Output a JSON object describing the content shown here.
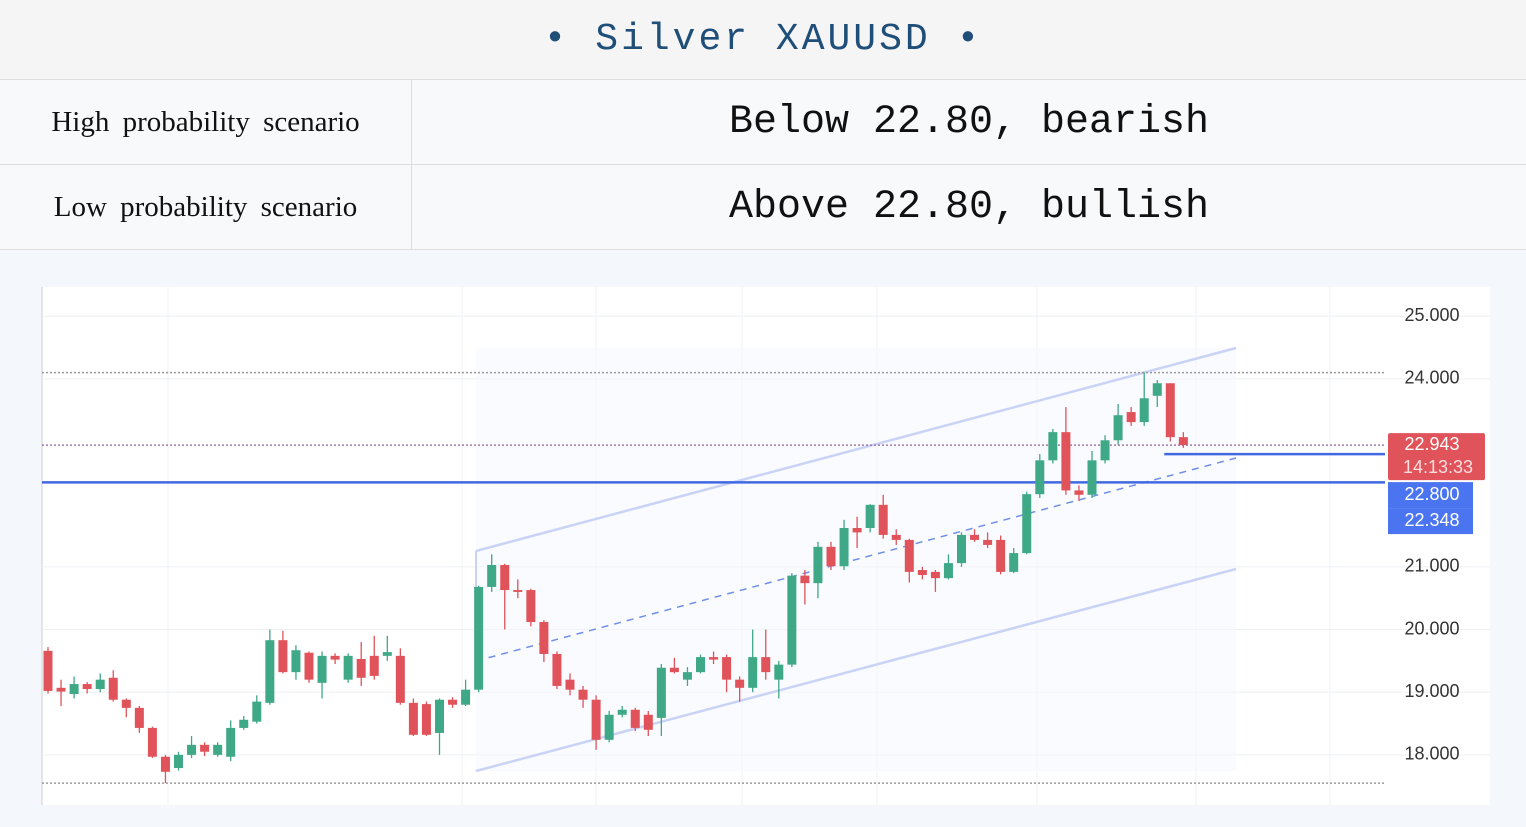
{
  "header": {
    "title": "• Silver XAUUSD •"
  },
  "table": {
    "rows": [
      [
        "High probability scenario",
        "Below 22.80, bearish"
      ],
      [
        "Low probability scenario",
        "Above 22.80, bullish"
      ]
    ]
  },
  "chart_data": {
    "type": "candlestick",
    "up_color": "#3fa886",
    "down_color": "#e0535a",
    "open": [
      19.66,
      19.07,
      18.97,
      19.13,
      19.05,
      19.23,
      18.88,
      18.75,
      18.43,
      17.97,
      17.79,
      18.0,
      18.16,
      18.0,
      17.97,
      18.43,
      18.53,
      18.83,
      19.83,
      19.32,
      19.63,
      19.15,
      19.58,
      19.2,
      19.53,
      19.58,
      19.58,
      19.58,
      18.83,
      18.81,
      18.35,
      18.88,
      18.8,
      19.04,
      20.68,
      21.03,
      20.63,
      20.63,
      20.12,
      19.61,
      19.2,
      19.04,
      18.88,
      18.24,
      18.64,
      18.72,
      18.64,
      18.59,
      19.39,
      19.2,
      19.32,
      19.56,
      19.56,
      19.2,
      19.07,
      19.56,
      19.2,
      19.44,
      20.86,
      20.74,
      21.32,
      21.01,
      21.62,
      21.62,
      21.99,
      21.51,
      21.43,
      20.95,
      20.92,
      20.82,
      21.06,
      21.51,
      21.43,
      21.43,
      20.92,
      21.22,
      22.16,
      22.7,
      23.15,
      22.22,
      22.15,
      22.7,
      23.02,
      23.47,
      23.31,
      23.73,
      23.93,
      23.07
    ],
    "high": [
      19.72,
      19.2,
      19.25,
      19.16,
      19.3,
      19.35,
      18.9,
      18.78,
      18.45,
      18.0,
      18.05,
      18.3,
      18.2,
      18.2,
      18.55,
      18.62,
      18.95,
      20.0,
      19.98,
      19.75,
      19.65,
      19.65,
      19.62,
      19.62,
      19.8,
      19.9,
      19.9,
      19.7,
      18.9,
      18.85,
      18.9,
      18.92,
      19.2,
      20.7,
      21.2,
      21.05,
      20.8,
      20.65,
      20.15,
      19.65,
      19.3,
      19.1,
      18.95,
      18.7,
      18.78,
      18.75,
      18.7,
      19.45,
      19.55,
      19.4,
      19.6,
      19.65,
      19.6,
      19.25,
      20.0,
      20.0,
      19.5,
      20.9,
      20.95,
      21.4,
      21.4,
      21.75,
      21.8,
      22.0,
      22.15,
      21.6,
      21.45,
      21.0,
      20.95,
      21.2,
      21.55,
      21.6,
      21.55,
      21.5,
      21.3,
      22.2,
      22.8,
      23.2,
      23.55,
      22.3,
      22.85,
      23.1,
      23.6,
      23.55,
      24.1,
      23.98,
      23.93,
      23.15
    ],
    "low": [
      18.98,
      18.78,
      18.9,
      18.98,
      19.0,
      18.85,
      18.6,
      18.35,
      17.95,
      17.55,
      17.75,
      17.95,
      17.98,
      17.97,
      17.9,
      18.4,
      18.5,
      18.8,
      19.3,
      19.2,
      19.15,
      18.9,
      19.45,
      19.15,
      19.1,
      19.2,
      19.5,
      18.8,
      18.3,
      18.3,
      18.0,
      18.75,
      18.78,
      19.0,
      20.6,
      20.0,
      20.5,
      20.05,
      19.48,
      19.05,
      18.95,
      18.75,
      18.08,
      18.2,
      18.6,
      18.38,
      18.3,
      18.3,
      19.3,
      19.1,
      19.3,
      19.45,
      19.0,
      18.85,
      19.0,
      19.2,
      18.9,
      19.4,
      20.4,
      20.5,
      20.95,
      20.95,
      21.3,
      21.55,
      21.45,
      21.35,
      20.75,
      20.8,
      20.6,
      20.8,
      21.0,
      21.4,
      21.3,
      20.88,
      20.9,
      21.2,
      22.1,
      22.65,
      22.15,
      22.05,
      22.1,
      22.65,
      22.95,
      23.25,
      23.25,
      23.55,
      23.0,
      22.9
    ],
    "close": [
      19.02,
      19.01,
      19.13,
      19.05,
      19.2,
      18.88,
      18.75,
      18.43,
      17.97,
      17.73,
      18.0,
      18.16,
      18.05,
      18.16,
      18.43,
      18.56,
      18.85,
      19.83,
      19.32,
      19.67,
      19.2,
      19.58,
      19.52,
      19.58,
      19.23,
      19.26,
      19.64,
      18.83,
      18.32,
      18.32,
      18.88,
      18.8,
      19.04,
      20.68,
      21.03,
      20.63,
      20.6,
      20.12,
      19.61,
      19.1,
      19.04,
      18.88,
      18.24,
      18.64,
      18.72,
      18.43,
      18.4,
      19.39,
      19.32,
      19.32,
      19.56,
      19.52,
      19.2,
      19.07,
      19.56,
      19.32,
      19.44,
      20.86,
      20.74,
      21.32,
      21.01,
      21.62,
      21.55,
      21.99,
      21.51,
      21.43,
      20.92,
      20.87,
      20.82,
      21.06,
      21.51,
      21.43,
      21.35,
      20.92,
      21.22,
      22.16,
      22.7,
      23.15,
      22.22,
      22.15,
      22.7,
      23.02,
      23.42,
      23.31,
      23.69,
      23.93,
      23.07,
      22.943
    ],
    "ylim": [
      17.2,
      25.45
    ],
    "yticks": [
      {
        "value": 18,
        "label": "18.000"
      },
      {
        "value": 19,
        "label": "19.000"
      },
      {
        "value": 20,
        "label": "20.000"
      },
      {
        "value": 21,
        "label": "21.000"
      },
      {
        "value": 24,
        "label": "24.000"
      },
      {
        "value": 25,
        "label": "25.000"
      }
    ],
    "grid": true,
    "lines": [
      {
        "value": 24.1,
        "style": "dotted",
        "color": "#9a9a9a"
      },
      {
        "value": 22.943,
        "style": "dotted",
        "color": "#a07aa8"
      },
      {
        "value": 17.55,
        "style": "dotted",
        "color": "#9a9a9a"
      },
      {
        "value": 22.348,
        "style": "solid",
        "color": "#4169e1"
      },
      {
        "value": 22.8,
        "style": "solid",
        "color": "#4169e1",
        "extend": "right"
      }
    ],
    "price_tags": [
      {
        "value": 22.943,
        "label": "22.943",
        "color": "#e0535a"
      },
      {
        "value": 22.8,
        "label": "22.800",
        "color": "#4a74f0"
      },
      {
        "value": 22.348,
        "label": "22.348",
        "color": "#4a74f0"
      }
    ],
    "countdown": "14:13:33"
  }
}
